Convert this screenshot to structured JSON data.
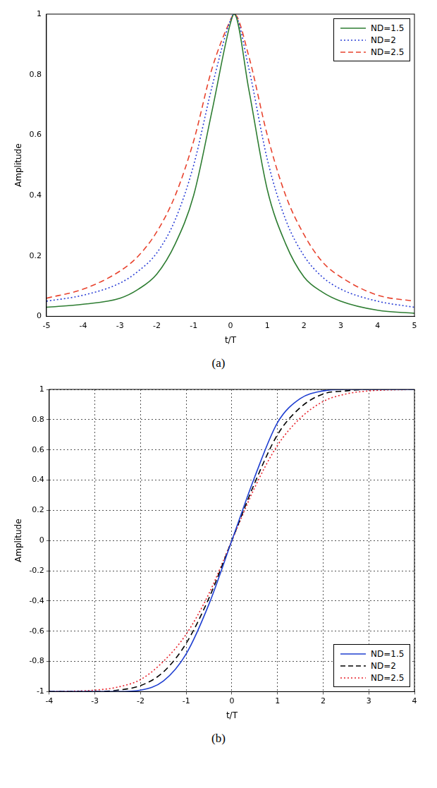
{
  "chart_data": [
    {
      "type": "line",
      "caption": "(a)",
      "x_label": "t/T",
      "y_label": "Amplitude",
      "x": [
        -5,
        -4,
        -3,
        -2.5,
        -2,
        -1.5,
        -1,
        -0.5,
        0,
        0.1,
        0.5,
        1,
        1.5,
        2,
        2.5,
        3,
        4,
        5
      ],
      "series": [
        {
          "name": "ND=1.5",
          "color": "#2e7d32",
          "line_style": "solid",
          "values": [
            0.03,
            0.04,
            0.06,
            0.09,
            0.14,
            0.24,
            0.4,
            0.68,
            0.97,
            1.0,
            0.75,
            0.42,
            0.24,
            0.13,
            0.08,
            0.05,
            0.02,
            0.01
          ]
        },
        {
          "name": "ND=2",
          "color": "#2b3fd6",
          "line_style": "dotted",
          "values": [
            0.05,
            0.07,
            0.11,
            0.15,
            0.21,
            0.32,
            0.5,
            0.76,
            0.98,
            1.0,
            0.82,
            0.52,
            0.32,
            0.2,
            0.13,
            0.09,
            0.05,
            0.03
          ]
        },
        {
          "name": "ND=2.5",
          "color": "#e8432e",
          "line_style": "dashed",
          "values": [
            0.06,
            0.09,
            0.15,
            0.2,
            0.28,
            0.4,
            0.58,
            0.82,
            0.98,
            1.0,
            0.86,
            0.6,
            0.4,
            0.27,
            0.18,
            0.13,
            0.07,
            0.05
          ]
        }
      ],
      "xlim": [
        -5,
        5
      ],
      "xticks": [
        -5,
        -4,
        -3,
        -2,
        -1,
        0,
        1,
        2,
        3,
        4,
        5
      ],
      "ylim": [
        0,
        1
      ],
      "yticks": [
        0,
        0.2,
        0.4,
        0.6,
        0.8,
        1
      ],
      "grid": false,
      "legend": "top-right"
    },
    {
      "type": "line",
      "caption": "(b)",
      "x_label": "t/T",
      "y_label": "Amplitude",
      "x": [
        -4,
        -3,
        -2.5,
        -2,
        -1.5,
        -1,
        -0.5,
        0,
        0.5,
        1,
        1.5,
        2,
        2.5,
        3,
        4
      ],
      "series": [
        {
          "name": "ND=1.5",
          "color": "#1f3fd1",
          "line_style": "solid",
          "values": [
            -1,
            -1,
            -1,
            -0.99,
            -0.93,
            -0.75,
            -0.42,
            0,
            0.42,
            0.78,
            0.94,
            0.99,
            1,
            1,
            1
          ]
        },
        {
          "name": "ND=2",
          "color": "#000000",
          "line_style": "dashed",
          "values": [
            -1,
            -1,
            -0.99,
            -0.96,
            -0.87,
            -0.68,
            -0.38,
            0,
            0.38,
            0.7,
            0.88,
            0.97,
            0.99,
            1,
            1
          ]
        },
        {
          "name": "ND=2.5",
          "color": "#e8202a",
          "line_style": "dotted",
          "values": [
            -1,
            -0.99,
            -0.97,
            -0.92,
            -0.8,
            -0.62,
            -0.35,
            0,
            0.35,
            0.63,
            0.81,
            0.92,
            0.97,
            0.99,
            1
          ]
        }
      ],
      "xlim": [
        -4,
        4
      ],
      "xticks": [
        -4,
        -3,
        -2,
        -1,
        0,
        1,
        2,
        3,
        4
      ],
      "ylim": [
        -1,
        1
      ],
      "yticks": [
        -1,
        -0.8,
        -0.6,
        -0.4,
        -0.2,
        0,
        0.2,
        0.4,
        0.6,
        0.8,
        1
      ],
      "grid": true,
      "legend": "bottom-right"
    }
  ]
}
